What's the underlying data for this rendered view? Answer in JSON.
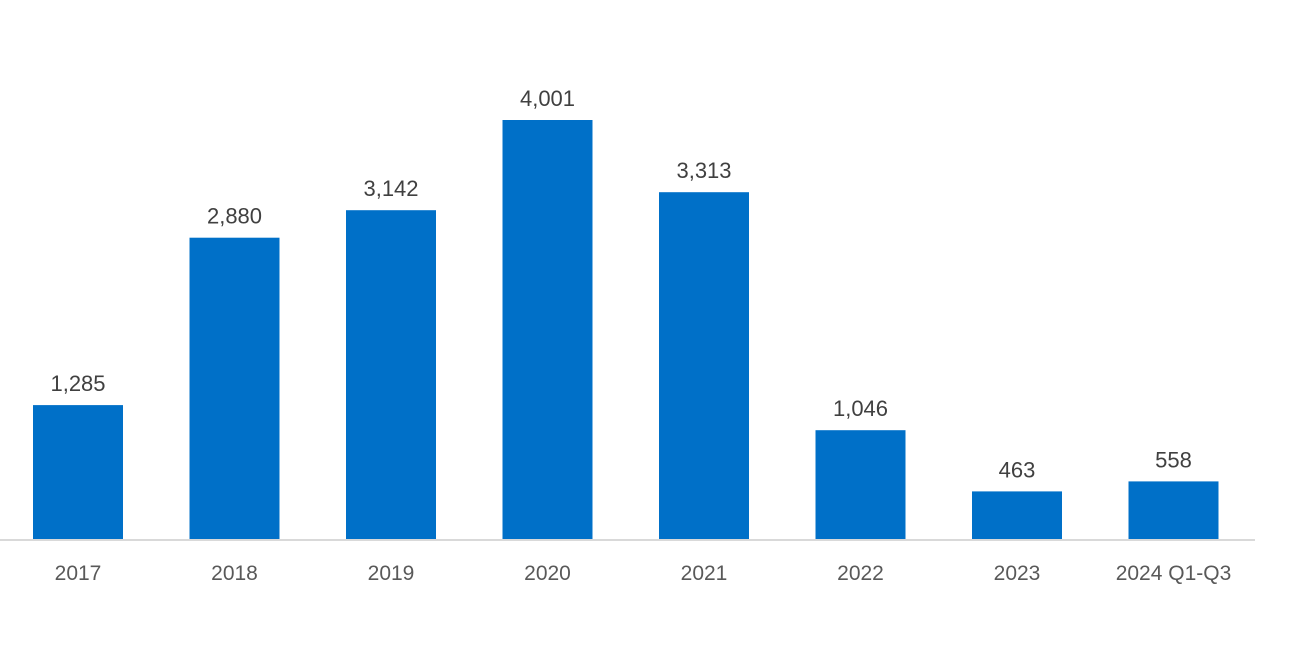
{
  "chart_data": {
    "type": "bar",
    "title": "",
    "xlabel": "",
    "ylabel": "",
    "categories": [
      "2017",
      "2018",
      "2019",
      "2020",
      "2021",
      "2022",
      "2023",
      "2024 Q1-Q3"
    ],
    "values": [
      1285,
      2880,
      3142,
      4001,
      3313,
      1046,
      463,
      558
    ],
    "data_labels": [
      "1,285",
      "2,880",
      "3,142",
      "4,001",
      "3,313",
      "1,046",
      "463",
      "558"
    ],
    "ylim": [
      0,
      4001
    ],
    "grid": false,
    "legend": "none",
    "colors": {
      "bar": "#0070C8",
      "axis": "#d9d9d9"
    }
  }
}
